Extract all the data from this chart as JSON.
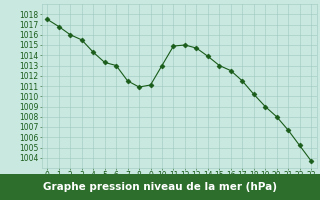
{
  "x": [
    0,
    1,
    2,
    3,
    4,
    5,
    6,
    7,
    8,
    9,
    10,
    11,
    12,
    13,
    14,
    15,
    16,
    17,
    18,
    19,
    20,
    21,
    22,
    23
  ],
  "y": [
    1017.5,
    1016.8,
    1016.0,
    1015.5,
    1014.3,
    1013.3,
    1013.0,
    1011.5,
    1010.9,
    1011.1,
    1013.0,
    1014.9,
    1015.0,
    1014.7,
    1013.9,
    1013.0,
    1012.5,
    1011.5,
    1010.2,
    1009.0,
    1008.0,
    1006.7,
    1005.2,
    1003.7
  ],
  "line_color": "#1a5c1a",
  "marker": "D",
  "marker_size": 2.5,
  "bg_color": "#c8e8e0",
  "grid_color": "#a0c8c0",
  "ylim": [
    1003,
    1019
  ],
  "yticks": [
    1004,
    1005,
    1006,
    1007,
    1008,
    1009,
    1010,
    1011,
    1012,
    1013,
    1014,
    1015,
    1016,
    1017,
    1018
  ],
  "xticks": [
    0,
    1,
    2,
    3,
    4,
    5,
    6,
    7,
    8,
    9,
    10,
    11,
    12,
    13,
    14,
    15,
    16,
    17,
    18,
    19,
    20,
    21,
    22,
    23
  ],
  "tick_color": "#1a5c1a",
  "tick_fontsize": 5.5,
  "xlabel": "Graphe pression niveau de la mer (hPa)",
  "xlabel_fontsize": 7.5,
  "label_bg_color": "#2d6e2d",
  "label_text_color": "#ffffff",
  "linewidth": 0.8
}
